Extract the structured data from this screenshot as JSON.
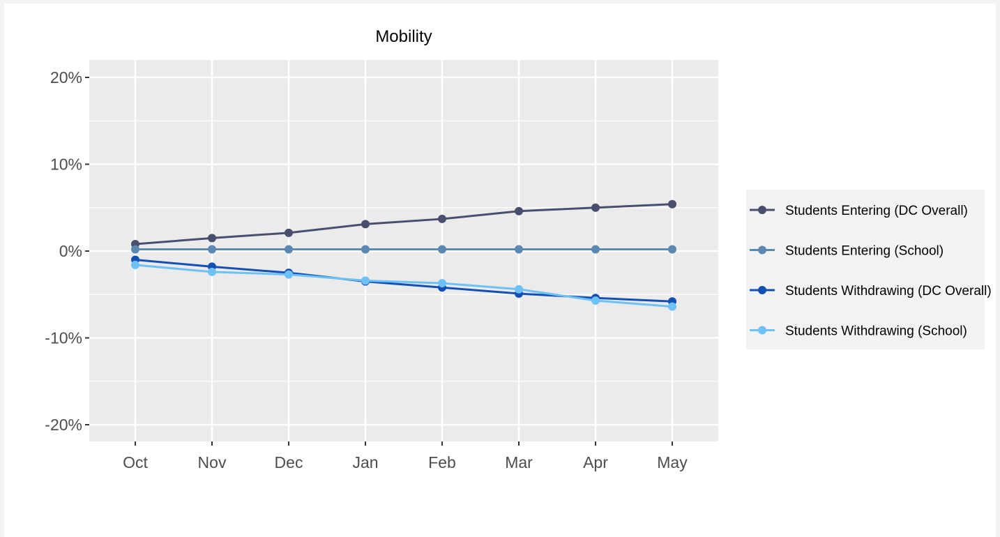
{
  "chart_data": {
    "type": "line",
    "title": "Mobility",
    "xlabel": "",
    "ylabel": "",
    "categories": [
      "Oct",
      "Nov",
      "Dec",
      "Jan",
      "Feb",
      "Mar",
      "Apr",
      "May"
    ],
    "ylim": [
      -0.2,
      0.2
    ],
    "yticks": [
      0.2,
      0.1,
      0,
      -0.1,
      -0.2
    ],
    "ytick_labels": [
      "20%",
      "10%",
      "0%",
      "-10%",
      "-20%"
    ],
    "grid": true,
    "legend_position": "right",
    "series": [
      {
        "name": "Students Entering (DC Overall)",
        "color": "#4a4e6e",
        "values": [
          0.008,
          0.015,
          0.021,
          0.031,
          0.037,
          0.046,
          0.05,
          0.054
        ]
      },
      {
        "name": "Students Entering (School)",
        "color": "#5b88b0",
        "values": [
          0.002,
          0.002,
          0.002,
          0.002,
          0.002,
          0.002,
          0.002,
          0.002
        ]
      },
      {
        "name": "Students Withdrawing (DC Overall)",
        "color": "#1450b4",
        "values": [
          -0.01,
          -0.018,
          -0.025,
          -0.035,
          -0.042,
          -0.049,
          -0.054,
          -0.058
        ]
      },
      {
        "name": "Students Withdrawing (School)",
        "color": "#6ec1f5",
        "values": [
          -0.016,
          -0.024,
          -0.027,
          -0.034,
          -0.037,
          -0.044,
          -0.057,
          -0.064
        ]
      }
    ]
  }
}
